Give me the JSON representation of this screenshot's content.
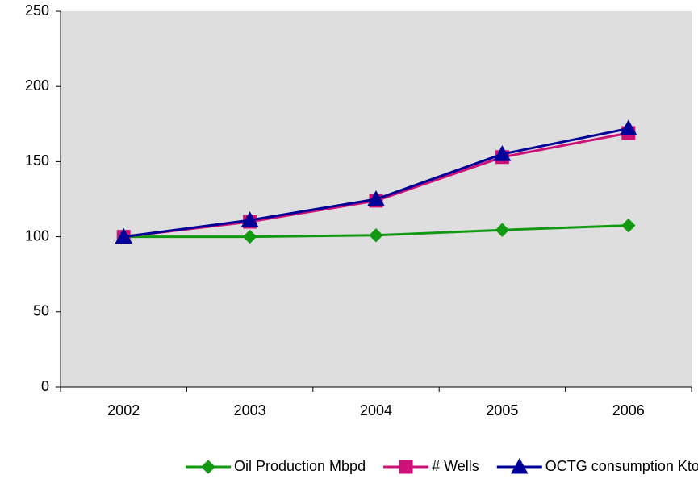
{
  "chart_data": {
    "type": "line",
    "categories": [
      "2002",
      "2003",
      "2004",
      "2005",
      "2006"
    ],
    "series": [
      {
        "name": "Oil Production Mbpd",
        "color": "#119911",
        "marker": "diamond",
        "values": [
          100,
          100,
          101,
          104.5,
          107.5
        ]
      },
      {
        "name": "# Wells",
        "color": "#cc1177",
        "marker": "square",
        "values": [
          100,
          110,
          124,
          153,
          169
        ]
      },
      {
        "name": "OCTG consumption Ktons",
        "color": "#000099",
        "marker": "triangle",
        "values": [
          100,
          111,
          125,
          155,
          172
        ]
      }
    ],
    "ylim": [
      0,
      250
    ],
    "yticks": [
      0,
      50,
      100,
      150,
      200,
      250
    ],
    "legend": "bottom"
  }
}
